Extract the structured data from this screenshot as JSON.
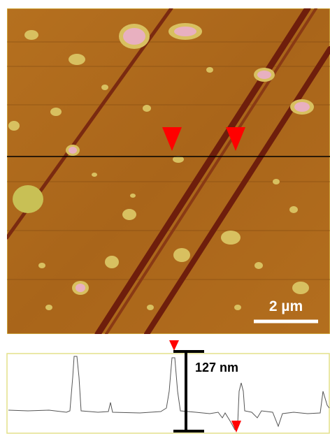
{
  "scale_bar": {
    "label": "2 µm"
  },
  "profile": {
    "height_label": "127 nm"
  }
}
